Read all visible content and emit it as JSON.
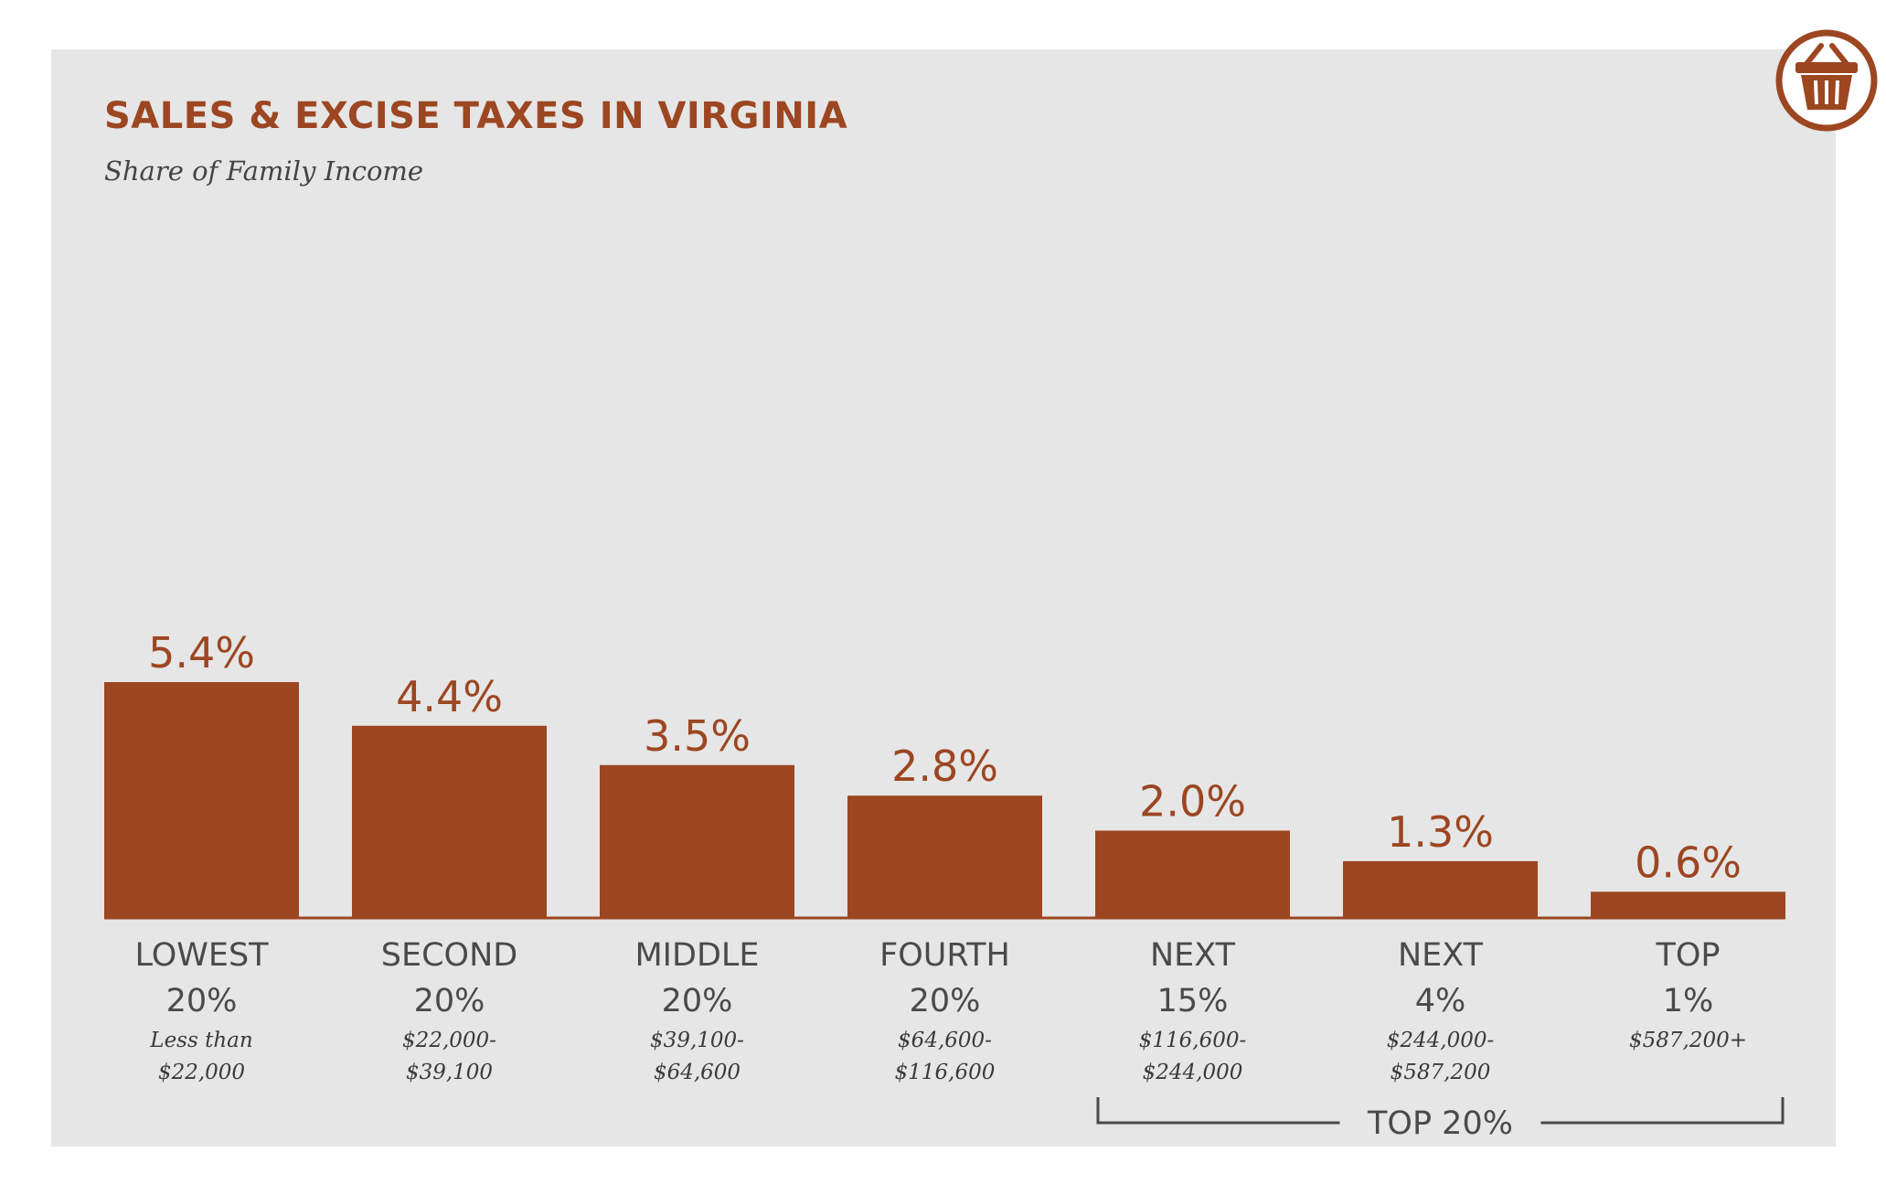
{
  "chart_data": {
    "type": "bar",
    "title": "SALES & EXCISE TAXES IN VIRGINIA",
    "subtitle": "Share of Family Income",
    "categories": [
      {
        "line1": "LOWEST",
        "line2": "20%",
        "range1": "Less than",
        "range2": "$22,000"
      },
      {
        "line1": "SECOND",
        "line2": "20%",
        "range1": "$22,000-",
        "range2": "$39,100"
      },
      {
        "line1": "MIDDLE",
        "line2": "20%",
        "range1": "$39,100-",
        "range2": "$64,600"
      },
      {
        "line1": "FOURTH",
        "line2": "20%",
        "range1": "$64,600-",
        "range2": "$116,600"
      },
      {
        "line1": "NEXT",
        "line2": "15%",
        "range1": "$116,600-",
        "range2": "$244,000"
      },
      {
        "line1": "NEXT",
        "line2": "4%",
        "range1": "$244,000-",
        "range2": "$587,200"
      },
      {
        "line1": "TOP",
        "line2": "1%",
        "range1": "$587,200+",
        "range2": ""
      }
    ],
    "values": [
      5.4,
      4.4,
      3.5,
      2.8,
      2.0,
      1.3,
      0.6
    ],
    "value_labels": [
      "5.4%",
      "4.4%",
      "3.5%",
      "2.8%",
      "2.0%",
      "1.3%",
      "0.6%"
    ],
    "group_bracket": {
      "label": "TOP 20%",
      "from_index": 4,
      "to_index": 6
    },
    "ylim": [
      0,
      5.4
    ],
    "grid": false,
    "legend": "none",
    "bar_color": "#9c4622"
  },
  "icon": "shopping-basket-icon",
  "colors": {
    "accent": "#9c4622",
    "panel": "#e6e6e6",
    "text": "#4a4a4a"
  }
}
